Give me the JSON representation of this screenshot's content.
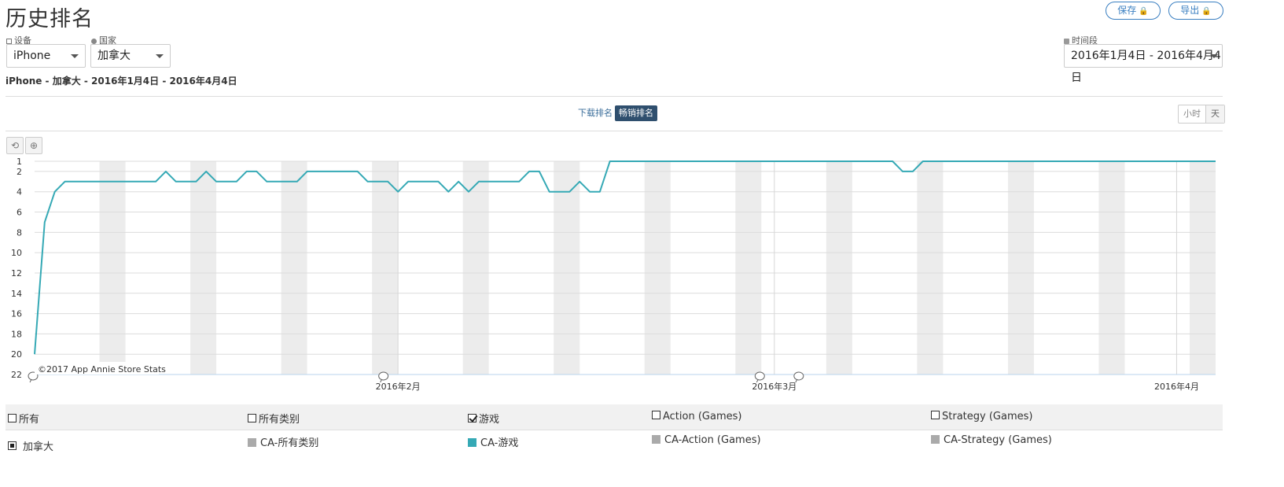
{
  "header": {
    "title": "历史排名",
    "save_label": "保存",
    "export_label": "导出",
    "lock_glyph": "🔒"
  },
  "filters": {
    "device_label": "设备",
    "device_value": "iPhone",
    "country_label": "国家",
    "country_value": "加拿大",
    "period_label": "时间段",
    "period_value": "2016年1月4日 - 2016年4月4日"
  },
  "subtitle": "iPhone - 加拿大 - 2016年1月4日 - 2016年4月4日",
  "rank_tabs": {
    "download": "下载排名",
    "grossing": "畅销排名"
  },
  "granularity": {
    "hour": "小时",
    "day": "天"
  },
  "toolbar": {
    "reset_glyph": "⟲",
    "zoom_glyph": "⊕"
  },
  "chart_data": {
    "type": "line",
    "x_start": "2016-01-04",
    "x_end": "2016-04-04",
    "y_inverted": true,
    "ylim": [
      1,
      22
    ],
    "y_ticks": [
      1,
      2,
      4,
      6,
      8,
      10,
      12,
      14,
      16,
      18,
      20,
      22
    ],
    "x_ticks": [
      {
        "date": "2016-02-01",
        "label": "2016年2月"
      },
      {
        "date": "2016-03-01",
        "label": "2016年3月"
      },
      {
        "date": "2016-04-01",
        "label": "2016年4月"
      }
    ],
    "weekend_shading": true,
    "annotation_markers": [
      "2016-01-04",
      "2016-01-31",
      "2016-02-29",
      "2016-03-03"
    ],
    "credit": "©2017 App Annie Store Stats",
    "series": [
      {
        "name": "CA-游戏",
        "color": "#35a9b5",
        "values": [
          20,
          7,
          4,
          3,
          3,
          3,
          3,
          3,
          3,
          3,
          3,
          3,
          3,
          2,
          3,
          3,
          3,
          2,
          3,
          3,
          3,
          2,
          2,
          3,
          3,
          3,
          3,
          2,
          2,
          2,
          2,
          2,
          2,
          3,
          3,
          3,
          4,
          3,
          3,
          3,
          3,
          4,
          3,
          4,
          3,
          3,
          3,
          3,
          3,
          2,
          2,
          4,
          4,
          4,
          3,
          4,
          4,
          1,
          1,
          1,
          1,
          1,
          1,
          1,
          1,
          1,
          1,
          1,
          1,
          1,
          1,
          1,
          1,
          1,
          1,
          1,
          1,
          1,
          1,
          1,
          1,
          1,
          1,
          1,
          1,
          1,
          2,
          2,
          1,
          1,
          1,
          1,
          1,
          1,
          1,
          1,
          1,
          1,
          1,
          1,
          1,
          1,
          1,
          1,
          1,
          1,
          1,
          1,
          1,
          1,
          1,
          1,
          1,
          1,
          1,
          1,
          1,
          1
        ]
      }
    ]
  },
  "legend": {
    "row1": [
      {
        "label": "所有",
        "checked": false
      },
      {
        "label": "所有类别",
        "checked": false
      },
      {
        "label": "游戏",
        "checked": true
      },
      {
        "label": "Action (Games)",
        "checked": false
      },
      {
        "label": "Strategy (Games)",
        "checked": false
      }
    ],
    "row2_country": "加拿大",
    "row2": [
      {
        "label": "CA-所有类别",
        "color": "#aaaaaa"
      },
      {
        "label": "CA-游戏",
        "color": "#35a9b5"
      },
      {
        "label": "CA-Action (Games)",
        "color": "#aaaaaa"
      },
      {
        "label": "CA-Strategy (Games)",
        "color": "#aaaaaa"
      }
    ]
  }
}
